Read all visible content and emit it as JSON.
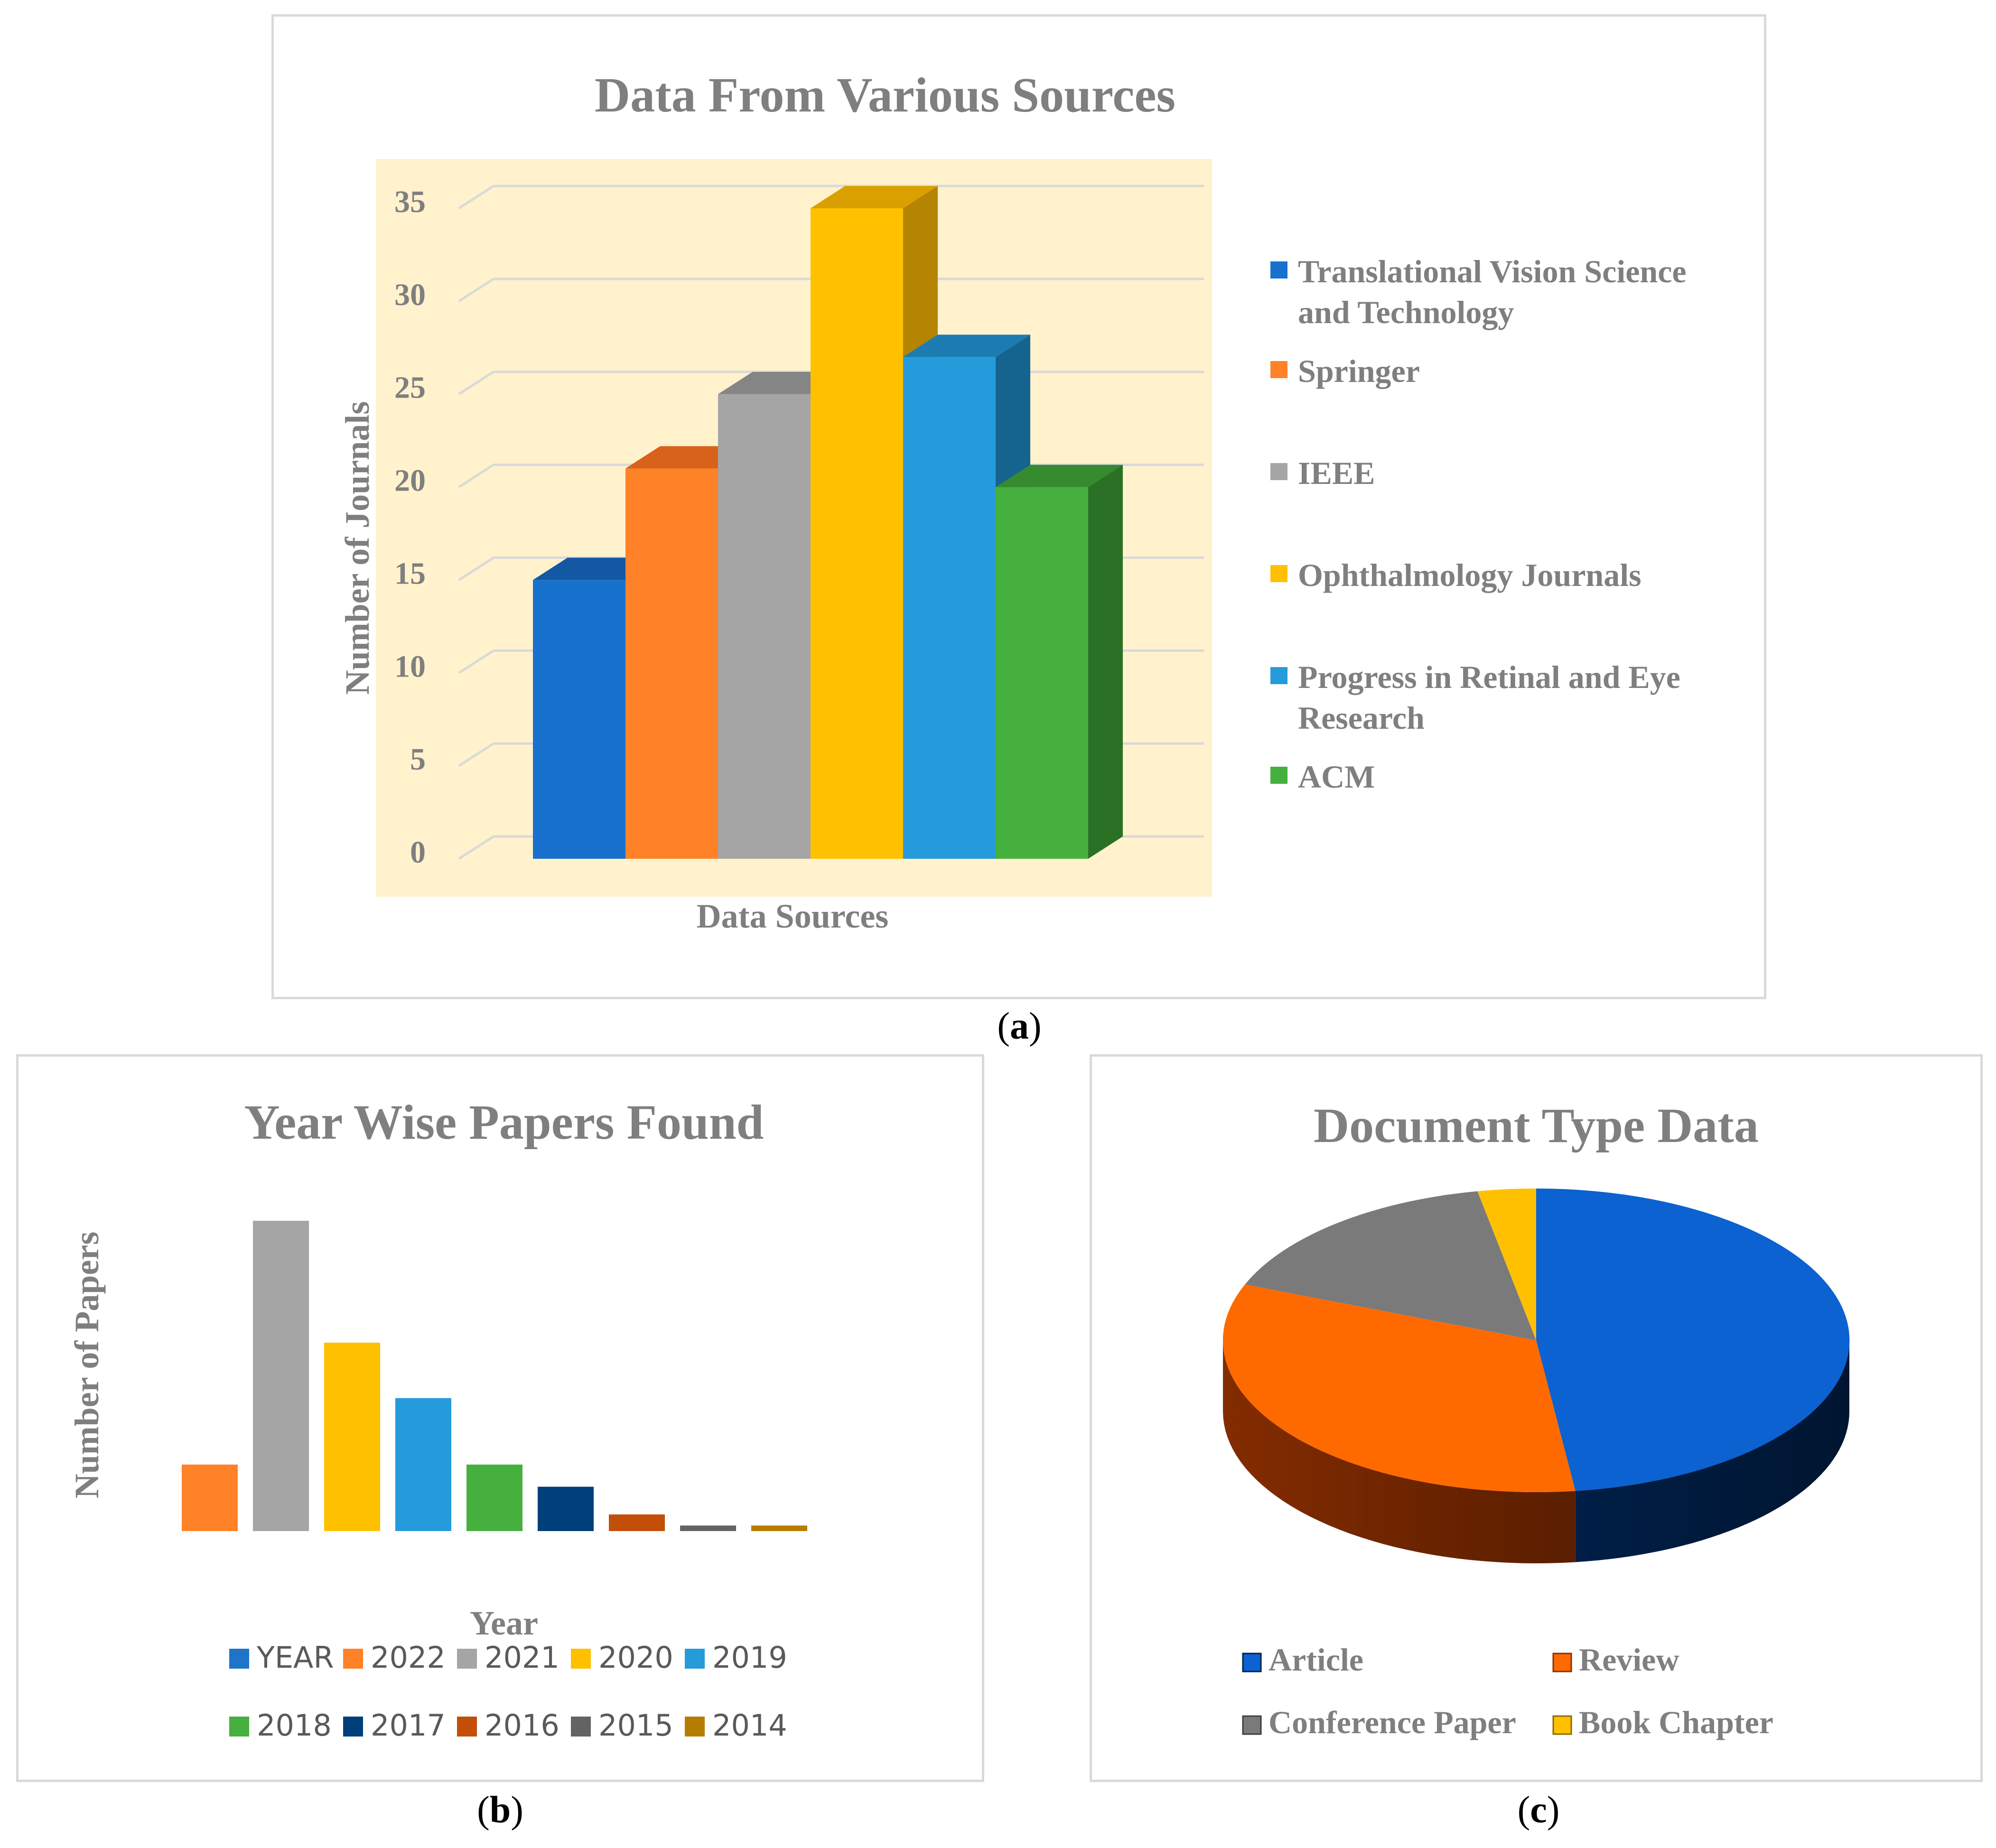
{
  "captions": {
    "a": "a",
    "b": "b",
    "c": "c"
  },
  "chart_data": [
    {
      "id": "a",
      "type": "bar",
      "title": "Data From Various Sources",
      "xlabel": "Data Sources",
      "ylabel": "Number of Journals",
      "ylim": [
        0,
        35
      ],
      "yticks": [
        0,
        5,
        10,
        15,
        20,
        25,
        30,
        35
      ],
      "grid": true,
      "legend_position": "right",
      "series": [
        {
          "name": "Translational Vision Science and Technology",
          "legend_lines": [
            "Translational Vision Science",
            "and Technology"
          ],
          "value": 15,
          "color": "#1871CD",
          "top_color": "#1358A3",
          "side_color": "#0F4A8A"
        },
        {
          "name": "Springer",
          "legend_lines": [
            "Springer"
          ],
          "value": 21,
          "color": "#FF8128",
          "top_color": "#D8621A",
          "side_color": "#C05515"
        },
        {
          "name": "IEEE",
          "legend_lines": [
            "IEEE"
          ],
          "value": 25,
          "color": "#A5A5A5",
          "top_color": "#858585",
          "side_color": "#7A7A7A"
        },
        {
          "name": "Ophthalmology Journals",
          "legend_lines": [
            "Ophthalmology Journals"
          ],
          "value": 35,
          "color": "#FFC000",
          "top_color": "#D9A000",
          "side_color": "#B58400"
        },
        {
          "name": "Progress in Retinal and Eye Research",
          "legend_lines": [
            "Progress in Retinal and Eye",
            "Research"
          ],
          "value": 27,
          "color": "#259BDB",
          "top_color": "#1C7CB2",
          "side_color": "#15648F"
        },
        {
          "name": "ACM",
          "legend_lines": [
            "ACM"
          ],
          "value": 20,
          "color": "#45B03E",
          "top_color": "#368A30",
          "side_color": "#2A7025"
        }
      ]
    },
    {
      "id": "b",
      "type": "bar",
      "title": "Year Wise Papers Found",
      "xlabel": "Year",
      "ylabel": "Number of Papers",
      "legend_position": "bottom",
      "series": [
        {
          "name": "YEAR",
          "value": 0,
          "color": "#1F73C9"
        },
        {
          "name": "2022",
          "value": 12,
          "color": "#FF8128"
        },
        {
          "name": "2021",
          "value": 56,
          "color": "#A5A5A5"
        },
        {
          "name": "2020",
          "value": 34,
          "color": "#FFC000"
        },
        {
          "name": "2019",
          "value": 24,
          "color": "#259BDB"
        },
        {
          "name": "2018",
          "value": 12,
          "color": "#45B03E"
        },
        {
          "name": "2017",
          "value": 8,
          "color": "#003F7A"
        },
        {
          "name": "2016",
          "value": 3,
          "color": "#C24E08"
        },
        {
          "name": "2015",
          "value": 1,
          "color": "#636363"
        },
        {
          "name": "2014",
          "value": 1,
          "color": "#B57D00"
        }
      ]
    },
    {
      "id": "c",
      "type": "pie",
      "title": "Document Type Data",
      "legend_position": "bottom",
      "slices": [
        {
          "name": "Article",
          "value": 48,
          "color": "#0B62D0",
          "dark": "#00204A"
        },
        {
          "name": "Review",
          "value": 33,
          "color": "#FF6A00",
          "dark": "#8A2E00"
        },
        {
          "name": "Conference Paper",
          "value": 16,
          "color": "#7A7A7A",
          "dark": "#3F3F3F"
        },
        {
          "name": "Book Chapter",
          "value": 3,
          "color": "#FFC000",
          "dark": "#8A6A00"
        }
      ]
    }
  ]
}
